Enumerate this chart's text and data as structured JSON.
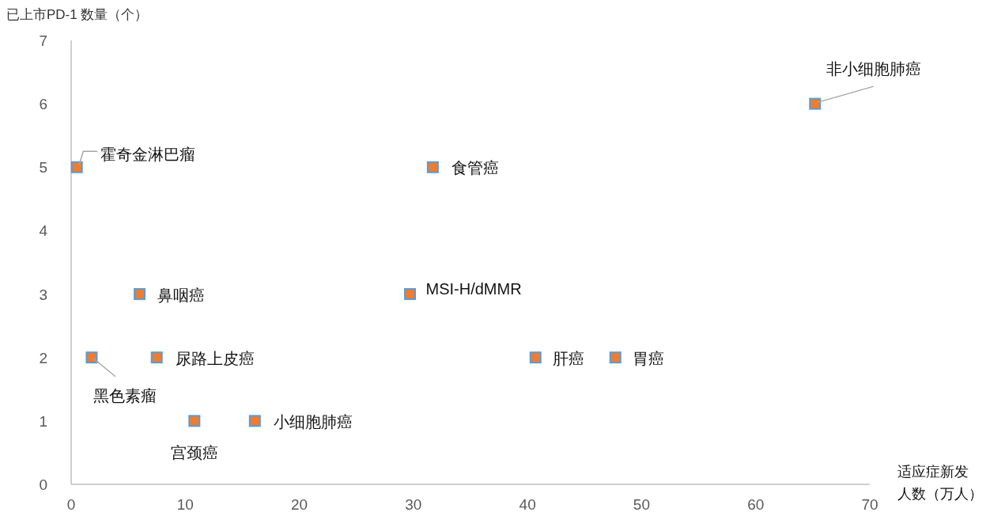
{
  "chart_data": {
    "type": "scatter",
    "xlabel": "适应症新发人数（万人）",
    "ylabel": "已上市PD-1 数量（个）",
    "marker": "square",
    "grid": false,
    "x": [
      0.5,
      31.7,
      65.2,
      6.0,
      29.7,
      1.8,
      7.5,
      40.7,
      47.7,
      10.8,
      16.1
    ],
    "series": [
      {
        "color": "#ed7d31",
        "values": [
          5,
          5,
          6,
          3,
          3,
          2,
          2,
          2,
          2,
          1,
          1
        ]
      }
    ],
    "xlim": [
      0,
      70
    ],
    "xticks": [
      0,
      10,
      20,
      30,
      40,
      50,
      60,
      70
    ],
    "ylim": [
      0,
      7
    ],
    "yticks": [
      0,
      1,
      2,
      3,
      4,
      5,
      6,
      7
    ],
    "annotations": [
      {
        "text": "霍奇金淋巴瘤",
        "x": 0.5,
        "y": 5
      },
      {
        "text": "食管癌",
        "x": 31.7,
        "y": 5
      },
      {
        "text": "非小细胞肺癌",
        "x": 65.2,
        "y": 6
      },
      {
        "text": "鼻咽癌",
        "x": 6.0,
        "y": 3
      },
      {
        "text": "MSI-H/dMMR",
        "x": 29.7,
        "y": 3
      },
      {
        "text": "黑色素瘤",
        "x": 1.8,
        "y": 2
      },
      {
        "text": "尿路上皮癌",
        "x": 7.5,
        "y": 2
      },
      {
        "text": "肝癌",
        "x": 40.7,
        "y": 2
      },
      {
        "text": "胃癌",
        "x": 47.7,
        "y": 2
      },
      {
        "text": "宫颈癌",
        "x": 10.8,
        "y": 1
      },
      {
        "text": "小细胞肺癌",
        "x": 16.1,
        "y": 1
      }
    ]
  }
}
